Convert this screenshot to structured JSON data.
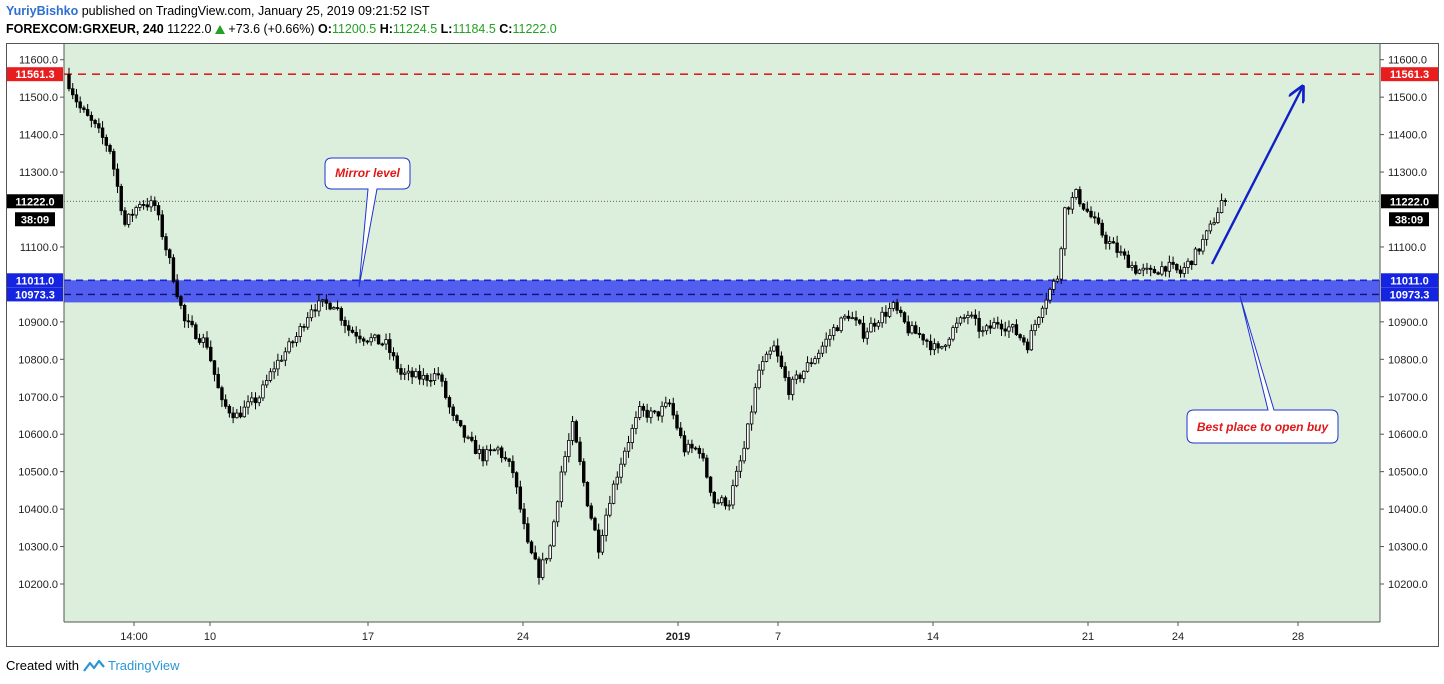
{
  "header": {
    "author": "YuriyBishko",
    "published": "published on TradingView.com, January 25, 2019 09:21:52 IST",
    "symbol": "FOREXCOM:GRXEUR, 240",
    "last": "11222.0",
    "change": "+73.6 (+0.66%)",
    "o_label": "O:",
    "o_value": "11200.5",
    "h_label": "H:",
    "h_value": "11224.5",
    "l_label": "L:",
    "l_value": "11184.5",
    "c_label": "C:",
    "c_value": "11222.0"
  },
  "footer": {
    "created_with": "Created with",
    "brand": "TradingView"
  },
  "colors": {
    "plot_bg": "#dcefdc",
    "zone_fill": "#3a44f0",
    "resistance": "#e02020",
    "support": "#1c22d8",
    "last_price_bg": "#000000",
    "arrow": "#1020c8"
  },
  "annotations": {
    "mirror_label": "Mirror level",
    "buy_label": "Best place to open buy"
  },
  "chart_data": {
    "type": "candlestick",
    "symbol": "FOREXCOM:GRXEUR",
    "interval": "240",
    "ylim": [
      10100,
      11650
    ],
    "yticks": [
      "11600.0",
      "11500.0",
      "11400.0",
      "11300.0",
      "11100.0",
      "10900.0",
      "10800.0",
      "10700.0",
      "10600.0",
      "10500.0",
      "10400.0",
      "10300.0",
      "10200.0"
    ],
    "xticks": [
      {
        "label": "14:00",
        "bold": false
      },
      {
        "label": "10",
        "bold": false
      },
      {
        "label": "17",
        "bold": false
      },
      {
        "label": "24",
        "bold": false
      },
      {
        "label": "2019",
        "bold": true
      },
      {
        "label": "7",
        "bold": false
      },
      {
        "label": "14",
        "bold": false
      },
      {
        "label": "21",
        "bold": false
      },
      {
        "label": "24",
        "bold": false
      },
      {
        "label": "28",
        "bold": false
      }
    ],
    "levels": {
      "resistance": 11561.3,
      "zone_top": 11011.0,
      "zone_bottom": 10973.3,
      "last_price": 11222.0,
      "countdown": "38:09"
    },
    "level_labels": {
      "resistance": "11561.3",
      "zone_top": "11011.0",
      "zone_bottom": "10973.3",
      "last_price": "11222.0"
    },
    "anchors": [
      {
        "t": 0,
        "p": 11560
      },
      {
        "t": 4,
        "p": 11470
      },
      {
        "t": 8,
        "p": 11420
      },
      {
        "t": 12,
        "p": 11360
      },
      {
        "t": 16,
        "p": 11160
      },
      {
        "t": 20,
        "p": 11220
      },
      {
        "t": 24,
        "p": 11210
      },
      {
        "t": 28,
        "p": 11060
      },
      {
        "t": 32,
        "p": 10900
      },
      {
        "t": 38,
        "p": 10840
      },
      {
        "t": 42,
        "p": 10680
      },
      {
        "t": 46,
        "p": 10650
      },
      {
        "t": 52,
        "p": 10700
      },
      {
        "t": 56,
        "p": 10780
      },
      {
        "t": 62,
        "p": 10860
      },
      {
        "t": 66,
        "p": 10940
      },
      {
        "t": 72,
        "p": 10950
      },
      {
        "t": 76,
        "p": 10880
      },
      {
        "t": 80,
        "p": 10860
      },
      {
        "t": 86,
        "p": 10840
      },
      {
        "t": 90,
        "p": 10760
      },
      {
        "t": 96,
        "p": 10750
      },
      {
        "t": 100,
        "p": 10760
      },
      {
        "t": 104,
        "p": 10640
      },
      {
        "t": 108,
        "p": 10580
      },
      {
        "t": 112,
        "p": 10540
      },
      {
        "t": 116,
        "p": 10560
      },
      {
        "t": 120,
        "p": 10500
      },
      {
        "t": 124,
        "p": 10300
      },
      {
        "t": 127,
        "p": 10230
      },
      {
        "t": 130,
        "p": 10300
      },
      {
        "t": 133,
        "p": 10500
      },
      {
        "t": 136,
        "p": 10620
      },
      {
        "t": 140,
        "p": 10420
      },
      {
        "t": 143,
        "p": 10300
      },
      {
        "t": 146,
        "p": 10430
      },
      {
        "t": 150,
        "p": 10560
      },
      {
        "t": 154,
        "p": 10660
      },
      {
        "t": 158,
        "p": 10650
      },
      {
        "t": 162,
        "p": 10680
      },
      {
        "t": 166,
        "p": 10560
      },
      {
        "t": 170,
        "p": 10560
      },
      {
        "t": 174,
        "p": 10420
      },
      {
        "t": 178,
        "p": 10420
      },
      {
        "t": 182,
        "p": 10560
      },
      {
        "t": 186,
        "p": 10770
      },
      {
        "t": 190,
        "p": 10830
      },
      {
        "t": 194,
        "p": 10720
      },
      {
        "t": 198,
        "p": 10770
      },
      {
        "t": 202,
        "p": 10820
      },
      {
        "t": 206,
        "p": 10880
      },
      {
        "t": 210,
        "p": 10920
      },
      {
        "t": 214,
        "p": 10870
      },
      {
        "t": 218,
        "p": 10910
      },
      {
        "t": 222,
        "p": 10940
      },
      {
        "t": 226,
        "p": 10880
      },
      {
        "t": 230,
        "p": 10860
      },
      {
        "t": 234,
        "p": 10820
      },
      {
        "t": 238,
        "p": 10880
      },
      {
        "t": 242,
        "p": 10920
      },
      {
        "t": 246,
        "p": 10870
      },
      {
        "t": 250,
        "p": 10900
      },
      {
        "t": 254,
        "p": 10880
      },
      {
        "t": 258,
        "p": 10840
      },
      {
        "t": 262,
        "p": 10950
      },
      {
        "t": 266,
        "p": 11020
      },
      {
        "t": 268,
        "p": 11200
      },
      {
        "t": 271,
        "p": 11240
      },
      {
        "t": 275,
        "p": 11180
      },
      {
        "t": 279,
        "p": 11120
      },
      {
        "t": 283,
        "p": 11080
      },
      {
        "t": 287,
        "p": 11040
      },
      {
        "t": 291,
        "p": 11030
      },
      {
        "t": 295,
        "p": 11050
      },
      {
        "t": 299,
        "p": 11030
      },
      {
        "t": 303,
        "p": 11080
      },
      {
        "t": 307,
        "p": 11150
      },
      {
        "t": 310,
        "p": 11222
      }
    ]
  }
}
